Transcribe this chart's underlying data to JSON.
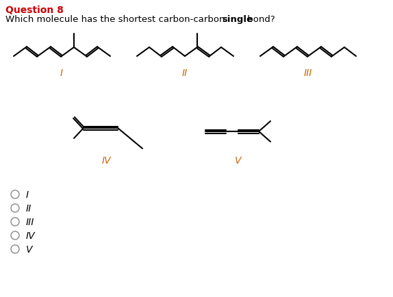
{
  "title_question": "Question 8",
  "title_color": "#cc0000",
  "question_text": "Which molecule has the shortest carbon-carbon ",
  "question_bold": "single",
  "question_end": " bond?",
  "bg_color": "#ffffff",
  "label_color": "#cc6600",
  "line_color": "#000000",
  "radio_color": "#888888",
  "labels": [
    "I",
    "II",
    "III",
    "IV",
    "V"
  ],
  "radio_options": [
    "I",
    "II",
    "III",
    "IV",
    "V"
  ],
  "figsize": [
    5.74,
    4.35
  ],
  "dpi": 100
}
